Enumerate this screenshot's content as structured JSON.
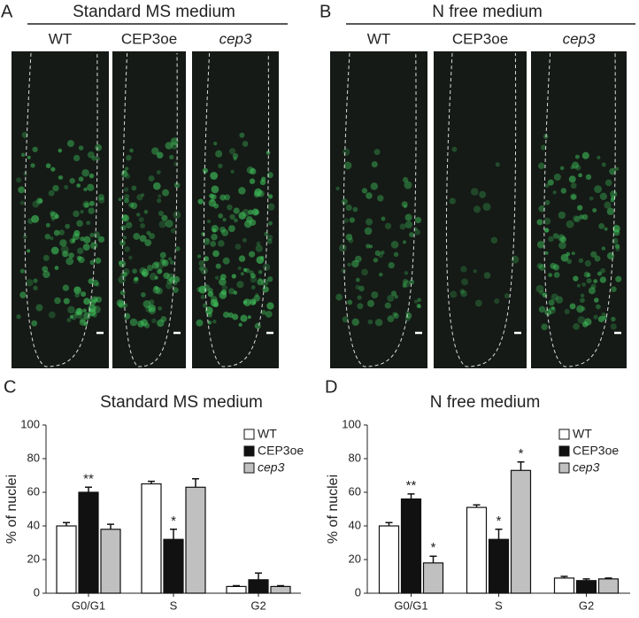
{
  "figure": {
    "panels": [
      {
        "label": "A",
        "title": "Standard MS medium",
        "columns": [
          "WT",
          "CEP3oe",
          "cep3"
        ]
      },
      {
        "label": "B",
        "title": "N free medium",
        "columns": [
          "WT",
          "CEP3oe",
          "cep3"
        ]
      }
    ],
    "chart_labels": [
      "C",
      "D"
    ]
  },
  "chart_data": [
    {
      "type": "bar",
      "title": "Standard  MS medium",
      "ylabel": "% of nuclei",
      "categories": [
        "G0/G1",
        "S",
        "G2"
      ],
      "ylim": [
        0,
        100
      ],
      "yticks": [
        0,
        20,
        40,
        60,
        80,
        100
      ],
      "series": [
        {
          "name": "WT",
          "color": "#ffffff",
          "values": [
            40,
            65,
            4
          ],
          "errors": [
            2,
            1.5,
            0.5
          ],
          "annotations": [
            null,
            null,
            null
          ]
        },
        {
          "name": "CEP3oe",
          "color": "#111111",
          "values": [
            60,
            32,
            8
          ],
          "errors": [
            3,
            6,
            4
          ],
          "annotations": [
            "**",
            "*",
            null
          ]
        },
        {
          "name": "cep3",
          "color": "#c0c0c0",
          "values": [
            38,
            63,
            4
          ],
          "errors": [
            3,
            5,
            0.5
          ],
          "annotations": [
            null,
            null,
            null
          ]
        }
      ]
    },
    {
      "type": "bar",
      "title": "N free medium",
      "ylabel": "% of nuclei",
      "categories": [
        "G0/G1",
        "S",
        "G2"
      ],
      "ylim": [
        0,
        100
      ],
      "yticks": [
        0,
        20,
        40,
        60,
        80,
        100
      ],
      "series": [
        {
          "name": "WT",
          "color": "#ffffff",
          "values": [
            40,
            51,
            9
          ],
          "errors": [
            2,
            1.5,
            1
          ],
          "annotations": [
            null,
            null,
            null
          ]
        },
        {
          "name": "CEP3oe",
          "color": "#111111",
          "values": [
            56,
            32,
            7.5
          ],
          "errors": [
            3,
            6,
            1
          ],
          "annotations": [
            "**",
            "*",
            null
          ]
        },
        {
          "name": "cep3",
          "color": "#c0c0c0",
          "values": [
            18,
            73,
            8.5
          ],
          "errors": [
            4,
            5,
            0.5
          ],
          "annotations": [
            "*",
            "*",
            null
          ]
        }
      ]
    }
  ]
}
